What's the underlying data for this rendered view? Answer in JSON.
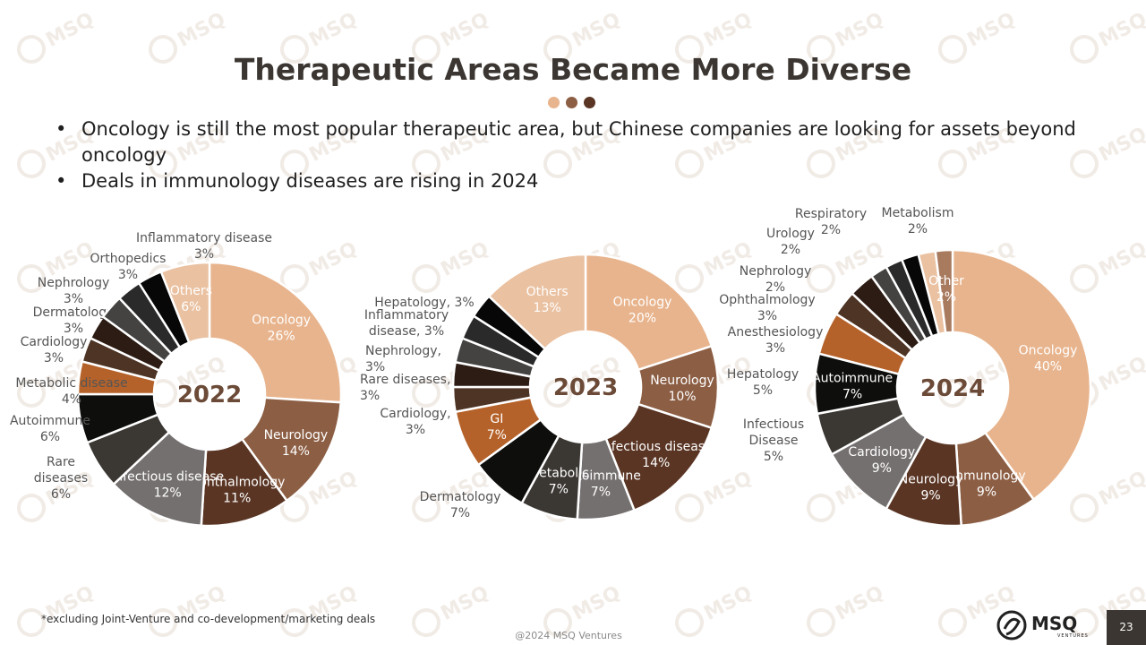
{
  "title": "Therapeutic Areas Became More Diverse",
  "bullets": [
    "Oncology is still the most popular therapeutic area, but Chinese companies are looking for assets beyond oncology",
    "Deals in immunology diseases are rising in 2024"
  ],
  "bullet_char": "•",
  "footnote": "*excluding Joint-Venture and co-development/marketing deals",
  "copyright": "@2024 MSQ Ventures",
  "logo": {
    "text": "MSQ",
    "sub": "VENTURES"
  },
  "page_number": "23",
  "colors": {
    "title": "#3b3631",
    "dots": [
      "#e8b48d",
      "#8c5e44",
      "#5a3524"
    ],
    "watermark": "#f1ebe6"
  },
  "chart_data": [
    {
      "type": "pie",
      "center_label": "2022",
      "labels": [
        "Oncology",
        "Neurology",
        "Ophthalmology",
        "Infectious disease",
        "Rare diseases",
        "Autoimmune",
        "Metabolic disease",
        "Cardiology",
        "Dermatology",
        "Nephrology",
        "Orthopedics",
        "Inflammatory disease",
        "Others"
      ],
      "values": [
        26,
        14,
        11,
        12,
        6,
        6,
        4,
        3,
        3,
        3,
        3,
        3,
        6
      ],
      "value_labels": [
        "26%",
        "14%",
        "11%",
        "12%",
        "6%",
        "6%",
        "4%",
        "3%",
        "3%",
        "3%",
        "3%",
        "3%",
        "6%"
      ],
      "colors": [
        "#e8b48d",
        "#8c5e44",
        "#5a3524",
        "#757070",
        "#3b3733",
        "#0e0e0c",
        "#b5622a",
        "#4e3425",
        "#2c1c14",
        "#454341",
        "#2a2a2a",
        "#070707",
        "#eac1a1"
      ]
    },
    {
      "type": "pie",
      "center_label": "2023",
      "labels": [
        "Oncology",
        "Neurology",
        "Infectious disease",
        "Autoimmune",
        "Metabolic",
        "Dermatology",
        "GI",
        "Cardiology,",
        "Rare diseases,",
        "Nephrology,",
        "Inflammatory disease,",
        "Hepatology,",
        "Others"
      ],
      "values": [
        20,
        10,
        14,
        7,
        7,
        7,
        7,
        3,
        3,
        3,
        3,
        3,
        13
      ],
      "value_labels": [
        "20%",
        "10%",
        "14%",
        "7%",
        "7%",
        "7%",
        "7%",
        "3%",
        "3%",
        "3%",
        "3%",
        "3%",
        "13%"
      ],
      "colors": [
        "#e8b48d",
        "#8c5e44",
        "#5a3524",
        "#757070",
        "#3b3733",
        "#0e0e0c",
        "#b5622a",
        "#4e3425",
        "#2c1c14",
        "#454341",
        "#2a2a2a",
        "#070707",
        "#eac1a1"
      ]
    },
    {
      "type": "pie",
      "center_label": "2024",
      "labels": [
        "Oncology",
        "Immunology",
        "Neurology",
        "Cardiology",
        "Infectious Disease",
        "Autoimmune",
        "Hepatology",
        "Anesthesiology",
        "Ophthalmology",
        "Nephrology",
        "Urology",
        "Respiratory",
        "Metabolism",
        "Other"
      ],
      "values": [
        40,
        9,
        9,
        9,
        5,
        7,
        5,
        3,
        3,
        2,
        2,
        2,
        2,
        2
      ],
      "value_labels": [
        "40%",
        "9%",
        "9%",
        "9%",
        "5%",
        "7%",
        "5%",
        "3%",
        "3%",
        "2%",
        "2%",
        "2%",
        "2%",
        "2%"
      ],
      "colors": [
        "#e8b48d",
        "#8c5e44",
        "#5a3524",
        "#757070",
        "#3b3733",
        "#0e0e0c",
        "#b5622a",
        "#4e3425",
        "#2c1c14",
        "#454341",
        "#2a2a2a",
        "#070707",
        "#eac1a1",
        "#a87a5e"
      ]
    }
  ]
}
